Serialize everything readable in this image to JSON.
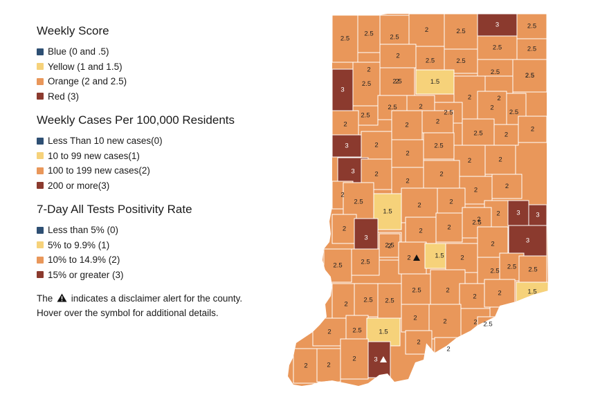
{
  "legends": [
    {
      "title": "Weekly Score",
      "items": [
        {
          "label": "Blue (0 and .5)",
          "color": "#2e4f73"
        },
        {
          "label": "Yellow (1 and 1.5)",
          "color": "#f6d27a"
        },
        {
          "label": "Orange (2 and 2.5)",
          "color": "#e9975a"
        },
        {
          "label": "Red (3)",
          "color": "#8b3a2e"
        }
      ]
    },
    {
      "title": "Weekly Cases Per 100,000 Residents",
      "items": [
        {
          "label": "Less Than 10 new cases(0)",
          "color": "#2e4f73"
        },
        {
          "label": "10 to 99 new cases(1)",
          "color": "#f6d27a"
        },
        {
          "label": "100 to 199 new cases(2)",
          "color": "#e9975a"
        },
        {
          "label": "200 or more(3)",
          "color": "#8b3a2e"
        }
      ]
    },
    {
      "title": "7-Day All Tests Positivity Rate",
      "items": [
        {
          "label": "Less than 5% (0)",
          "color": "#2e4f73"
        },
        {
          "label": "5% to 9.9% (1)",
          "color": "#f6d27a"
        },
        {
          "label": "10% to 14.9% (2)",
          "color": "#e9975a"
        },
        {
          "label": "15% or greater (3)",
          "color": "#8b3a2e"
        }
      ]
    }
  ],
  "note": {
    "prefix": "The",
    "suffix": "indicates a disclaimer alert for the county.",
    "line2": "Hover over the symbol for additional details."
  },
  "alert_icon": "warning-triangle-icon",
  "score_colors": {
    "1.5": "#f6d27a",
    "2": "#e9975a",
    "2.5": "#e9975a",
    "3": "#8b3a2e"
  },
  "counties": [
    {
      "score": "2.5"
    },
    {
      "score": "2.5"
    },
    {
      "score": "2.5"
    },
    {
      "score": "2"
    },
    {
      "score": "2.5"
    },
    {
      "score": "3"
    },
    {
      "score": "2.5"
    },
    {
      "score": "2.5"
    },
    {
      "score": "2.5"
    },
    {
      "score": "2"
    },
    {
      "score": "2.5"
    },
    {
      "score": "2.5"
    },
    {
      "score": "2.5"
    },
    {
      "score": "2"
    },
    {
      "score": "2.5"
    },
    {
      "score": "2.5"
    },
    {
      "score": "3"
    },
    {
      "score": "2.5"
    },
    {
      "score": "2"
    },
    {
      "score": "1.5"
    },
    {
      "score": "2.5"
    },
    {
      "score": "2"
    },
    {
      "score": "2"
    },
    {
      "score": "2.5"
    },
    {
      "score": "2.5"
    },
    {
      "score": "2.5"
    },
    {
      "score": "2"
    },
    {
      "score": "2.5"
    },
    {
      "score": "2"
    },
    {
      "score": "2"
    },
    {
      "score": "2"
    },
    {
      "score": "2"
    },
    {
      "score": "2.5"
    },
    {
      "score": "2"
    },
    {
      "score": "2"
    },
    {
      "score": "3"
    },
    {
      "score": "2"
    },
    {
      "score": "2"
    },
    {
      "score": "2.5"
    },
    {
      "score": "2"
    },
    {
      "score": "2"
    },
    {
      "score": "3"
    },
    {
      "score": "2"
    },
    {
      "score": "2"
    },
    {
      "score": "2"
    },
    {
      "score": "2"
    },
    {
      "score": "2"
    },
    {
      "score": "2"
    },
    {
      "score": "2.5"
    },
    {
      "score": "1.5"
    },
    {
      "score": "2"
    },
    {
      "score": "2"
    },
    {
      "score": "2"
    },
    {
      "score": "2"
    },
    {
      "score": "3"
    },
    {
      "score": "3"
    },
    {
      "score": "2"
    },
    {
      "score": "3"
    },
    {
      "score": "2"
    },
    {
      "score": "2"
    },
    {
      "score": "2"
    },
    {
      "score": "2.5"
    },
    {
      "score": "2.5"
    },
    {
      "score": "2",
      "alert": true
    },
    {
      "score": "1.5"
    },
    {
      "score": "2"
    },
    {
      "score": "2"
    },
    {
      "score": "3"
    },
    {
      "score": "2.5"
    },
    {
      "score": "2.5"
    },
    {
      "score": "2.5"
    },
    {
      "score": "2.5"
    },
    {
      "score": "2.5"
    },
    {
      "score": "2"
    },
    {
      "score": "2.5"
    },
    {
      "score": "2.5"
    },
    {
      "score": "2.5"
    },
    {
      "score": "2"
    },
    {
      "score": "2"
    },
    {
      "score": "2"
    },
    {
      "score": "1.5"
    },
    {
      "score": "2"
    },
    {
      "score": "2"
    },
    {
      "score": "2"
    },
    {
      "score": "2.5"
    },
    {
      "score": "2"
    },
    {
      "score": "2.5"
    },
    {
      "score": "1.5"
    },
    {
      "score": "2"
    },
    {
      "score": "2"
    },
    {
      "score": "2"
    },
    {
      "score": "2"
    },
    {
      "score": "2"
    },
    {
      "score": "3",
      "alert": true
    }
  ]
}
